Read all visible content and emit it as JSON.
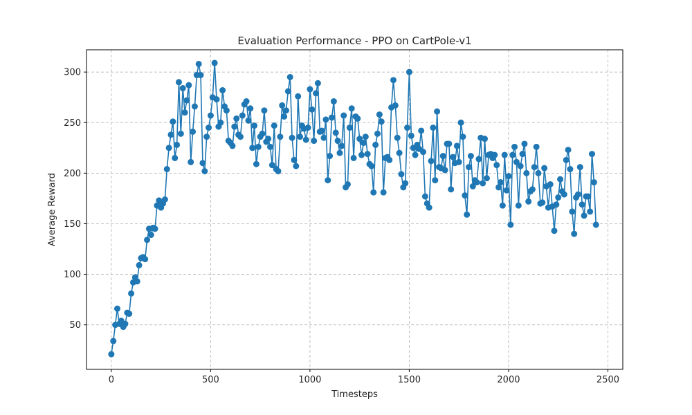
{
  "chart_data": {
    "type": "line",
    "title": "Evaluation Performance - PPO on CartPole-v1",
    "xlabel": "Timesteps",
    "ylabel": "Average Reward",
    "xlim": [
      -125,
      2575
    ],
    "ylim": [
      6,
      322
    ],
    "xticks": [
      0,
      500,
      1000,
      1500,
      2000,
      2500
    ],
    "yticks": [
      50,
      100,
      150,
      200,
      250,
      300
    ],
    "grid": true,
    "series": [
      {
        "color": "#1f77b4",
        "marker": "circle",
        "x": [
          0,
          10,
          20,
          30,
          40,
          50,
          60,
          70,
          80,
          90,
          100,
          110,
          120,
          130,
          140,
          150,
          160,
          170,
          180,
          190,
          200,
          210,
          220,
          230,
          240,
          250,
          260,
          270,
          280,
          290,
          300,
          310,
          320,
          330,
          340,
          350,
          360,
          370,
          380,
          390,
          400,
          410,
          420,
          430,
          440,
          450,
          460,
          470,
          480,
          490,
          500,
          510,
          520,
          530,
          540,
          550,
          560,
          570,
          580,
          590,
          600,
          610,
          620,
          630,
          640,
          650,
          660,
          670,
          680,
          690,
          700,
          710,
          720,
          730,
          740,
          750,
          760,
          770,
          780,
          790,
          800,
          810,
          820,
          830,
          840,
          850,
          860,
          870,
          880,
          890,
          900,
          910,
          920,
          930,
          940,
          950,
          960,
          970,
          980,
          990,
          1000,
          1010,
          1020,
          1030,
          1040,
          1050,
          1060,
          1070,
          1080,
          1090,
          1100,
          1110,
          1120,
          1130,
          1140,
          1150,
          1160,
          1170,
          1180,
          1190,
          1200,
          1210,
          1220,
          1230,
          1240,
          1250,
          1260,
          1270,
          1280,
          1290,
          1300,
          1310,
          1320,
          1330,
          1340,
          1350,
          1360,
          1370,
          1380,
          1390,
          1400,
          1410,
          1420,
          1430,
          1440,
          1450,
          1460,
          1470,
          1480,
          1490,
          1500,
          1510,
          1520,
          1530,
          1540,
          1550,
          1560,
          1570,
          1580,
          1590,
          1600,
          1610,
          1620,
          1630,
          1640,
          1650,
          1660,
          1670,
          1680,
          1690,
          1700,
          1710,
          1720,
          1730,
          1740,
          1750,
          1760,
          1770,
          1780,
          1790,
          1800,
          1810,
          1820,
          1830,
          1840,
          1850,
          1860,
          1870,
          1880,
          1890,
          1900,
          1910,
          1920,
          1930,
          1940,
          1950,
          1960,
          1970,
          1980,
          1990,
          2000,
          2010,
          2020,
          2030,
          2040,
          2050,
          2060,
          2070,
          2080,
          2090,
          2100,
          2110,
          2120,
          2130,
          2140,
          2150,
          2160,
          2170,
          2180,
          2190,
          2200,
          2210,
          2220,
          2230,
          2240,
          2250,
          2260,
          2270,
          2280,
          2290,
          2300,
          2310,
          2320,
          2330,
          2340,
          2350,
          2360,
          2370,
          2380,
          2390,
          2400,
          2410,
          2420,
          2430,
          2440
        ],
        "y": [
          21,
          34,
          50,
          66,
          51,
          54,
          48,
          51,
          62,
          61,
          81,
          92,
          97,
          93,
          109,
          116,
          117,
          115,
          134,
          145,
          139,
          146,
          145,
          168,
          173,
          166,
          170,
          174,
          204,
          225,
          238,
          251,
          215,
          228,
          290,
          239,
          284,
          260,
          272,
          287,
          211,
          241,
          266,
          297,
          308,
          297,
          210,
          202,
          236,
          245,
          257,
          275,
          309,
          273,
          246,
          250,
          282,
          266,
          262,
          232,
          230,
          227,
          246,
          254,
          238,
          236,
          257,
          268,
          271,
          252,
          264,
          225,
          247,
          209,
          226,
          236,
          239,
          262,
          231,
          234,
          226,
          208,
          247,
          204,
          202,
          236,
          267,
          256,
          262,
          281,
          295,
          235,
          213,
          207,
          276,
          236,
          247,
          244,
          233,
          245,
          283,
          263,
          232,
          279,
          289,
          241,
          242,
          235,
          253,
          193,
          217,
          255,
          271,
          240,
          232,
          220,
          227,
          257,
          186,
          189,
          245,
          264,
          215,
          256,
          254,
          234,
          218,
          230,
          236,
          219,
          209,
          207,
          181,
          228,
          239,
          258,
          251,
          181,
          215,
          216,
          213,
          265,
          292,
          267,
          235,
          220,
          199,
          186,
          190,
          245,
          300,
          237,
          225,
          218,
          228,
          224,
          242,
          221,
          177,
          170,
          166,
          212,
          245,
          193,
          261,
          206,
          205,
          217,
          203,
          229,
          229,
          184,
          216,
          210,
          227,
          211,
          250,
          236,
          178,
          159,
          206,
          217,
          187,
          193,
          191,
          214,
          235,
          190,
          234,
          195,
          218,
          219,
          215,
          218,
          208,
          186,
          191,
          168,
          218,
          183,
          197,
          149,
          218,
          226,
          211,
          168,
          207,
          219,
          229,
          200,
          172,
          182,
          184,
          206,
          226,
          200,
          170,
          171,
          205,
          187,
          166,
          189,
          167,
          143,
          169,
          176,
          194,
          182,
          179,
          213,
          223,
          204,
          162,
          140,
          176,
          179,
          206,
          169,
          158,
          177,
          177,
          162,
          219,
          191,
          149
        ]
      }
    ]
  }
}
